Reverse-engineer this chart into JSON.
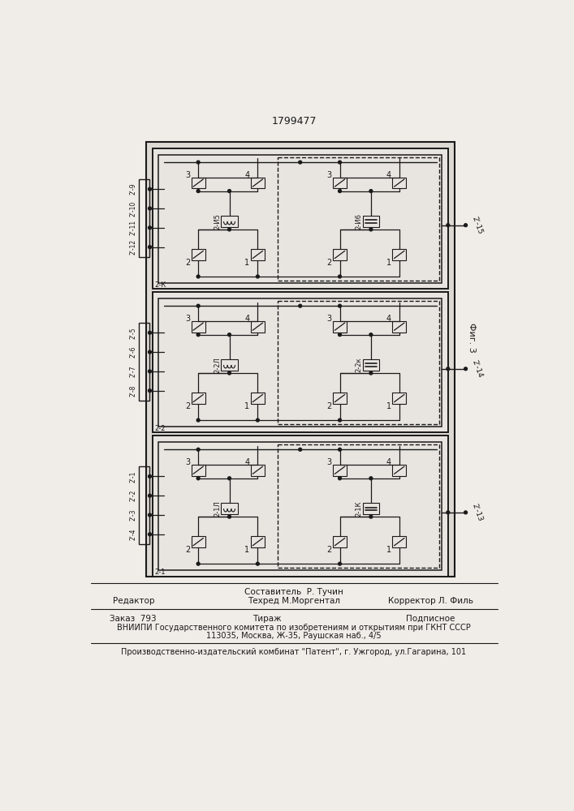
{
  "patent_number": "1799477",
  "fig_label": "Фиг. 3",
  "page_background": "#f0ede8",
  "editor_line": "Редактор",
  "compiler_line": "Составитель  Р. Тучин",
  "techred_line": "Техред М.Моргентал",
  "corrector_line": "Корректор Л. Филь",
  "order_line": "Заказ  793",
  "tirazh_line": "Тираж",
  "podpisnoe_line": "Подписное",
  "vniiipi_line": "ВНИИПИ Государственного комитета по изобретениям и открытиям при ГКНТ СССР",
  "address_line": "113035, Москва, Ж-35, Раушская наб., 4/5",
  "factory_line": "Производственно-издательский комбинат \"Патент\", г. Ужгород, ул.Гагарина, 101",
  "blocks": [
    {
      "label_outer": "2-К",
      "label_l1": "2-И5",
      "label_l2": "2-И6",
      "out_label": "2'-15",
      "inputs": [
        "2'-9",
        "2'-10",
        "2'-11",
        "2'-12"
      ]
    },
    {
      "label_outer": "2-2",
      "label_l1": "2-2Л",
      "label_l2": "2-2к",
      "out_label": "2'-14",
      "inputs": [
        "2'-5",
        "2'-6",
        "2'-7",
        "2'-8"
      ]
    },
    {
      "label_outer": "2-1",
      "label_l1": "2-1Л",
      "label_l2": "2-1К",
      "out_label": "2'-13",
      "inputs": [
        "2'-1",
        "2'-2",
        "2'-3",
        "2'-4"
      ]
    }
  ]
}
